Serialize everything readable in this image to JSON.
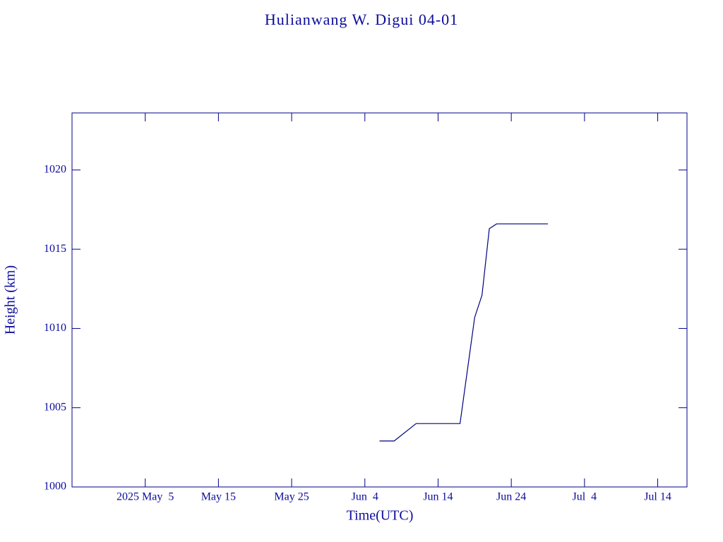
{
  "chart_data": {
    "type": "line",
    "title": "Hulianwang W. Digui 04-01",
    "x_label": "Time(UTC)",
    "y_label": "Height (km)",
    "x": [
      "2025-06-06",
      "2025-06-08",
      "2025-06-11",
      "2025-06-17",
      "2025-06-19",
      "2025-06-20",
      "2025-06-21",
      "2025-06-22",
      "2025-06-29"
    ],
    "series": [
      {
        "name": "Height",
        "color": "#00007f",
        "values": [
          1002.9,
          1002.9,
          1004.0,
          1004.0,
          1010.7,
          1012.1,
          1016.3,
          1016.6,
          1016.6
        ]
      }
    ],
    "xlim": [
      "2025-04-25",
      "2025-07-18"
    ],
    "xticks": [
      {
        "value": "2025-05-05",
        "label": "2025 May  5"
      },
      {
        "value": "2025-05-15",
        "label": "May 15"
      },
      {
        "value": "2025-05-25",
        "label": "May 25"
      },
      {
        "value": "2025-06-04",
        "label": "Jun  4"
      },
      {
        "value": "2025-06-14",
        "label": "Jun 14"
      },
      {
        "value": "2025-06-24",
        "label": "Jun 24"
      },
      {
        "value": "2025-07-04",
        "label": "Jul  4"
      },
      {
        "value": "2025-07-14",
        "label": "Jul 14"
      }
    ],
    "ylim": [
      1000,
      1023.6
    ],
    "yticks": [
      1000,
      1005,
      1010,
      1015,
      1020
    ],
    "grid": false
  }
}
